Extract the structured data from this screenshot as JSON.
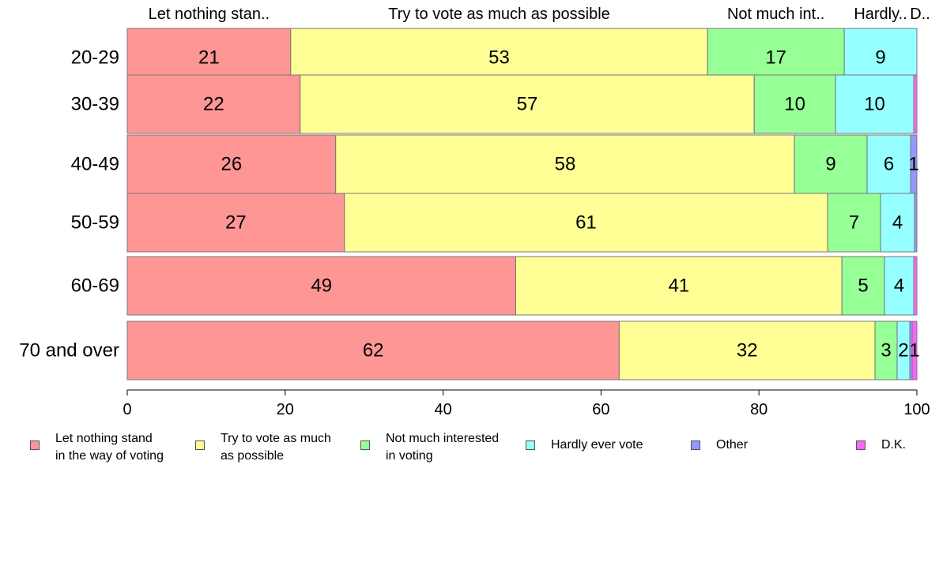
{
  "chart_data": {
    "type": "bar",
    "orientation": "horizontal",
    "stacked": true,
    "categories": [
      "20-29",
      "30-39",
      "40-49",
      "50-59",
      "60-69",
      "70 and over"
    ],
    "series": [
      {
        "name": "Let nothing stand in the way of voting",
        "top_label": "Let nothing stan..",
        "legend_label": "Let nothing stand\nin the way of voting",
        "color": "#ff9696",
        "values": [
          20.7,
          21.9,
          26.4,
          27.5,
          49.2,
          62.3
        ],
        "labels": [
          "21",
          "22",
          "26",
          "27",
          "49",
          "62"
        ]
      },
      {
        "name": "Try to vote as much as possible",
        "top_label": "Try to vote as much as possible",
        "legend_label": "Try to vote as much\nas possible",
        "color": "#ffff96",
        "values": [
          52.8,
          57.5,
          58.1,
          61.2,
          41.3,
          32.4
        ],
        "labels": [
          "53",
          "57",
          "58",
          "61",
          "41",
          "32"
        ]
      },
      {
        "name": "Not much interested in voting",
        "top_label": "Not much int..",
        "legend_label": "Not much interested\nin voting",
        "color": "#96ff96",
        "values": [
          17.3,
          10.3,
          9.2,
          6.7,
          5.4,
          2.8
        ],
        "labels": [
          "17",
          "10",
          "9",
          "7",
          "5",
          "3"
        ]
      },
      {
        "name": "Hardly ever vote",
        "top_label": "Hardly..",
        "legend_label": "Hardly ever vote",
        "color": "#96ffff",
        "values": [
          9.2,
          9.9,
          5.5,
          4.3,
          3.7,
          1.6
        ],
        "labels": [
          "9",
          "10",
          "6",
          "4",
          "4",
          "2"
        ]
      },
      {
        "name": "Other",
        "top_label": "",
        "legend_label": "Other",
        "color": "#9696ff",
        "values": [
          0.0,
          0.0,
          0.8,
          0.3,
          0.0,
          0.3
        ],
        "labels": [
          "",
          "",
          "1",
          "",
          "",
          ""
        ]
      },
      {
        "name": "D.K.",
        "top_label": "D..",
        "legend_label": "D.K.",
        "color": "#ff64ff",
        "values": [
          0.0,
          0.4,
          0.0,
          0.0,
          0.4,
          0.6
        ],
        "labels": [
          "",
          "",
          "",
          "",
          "",
          "1"
        ]
      }
    ],
    "xlim": [
      0,
      100
    ],
    "x_ticks": [
      "0",
      "20",
      "40",
      "60",
      "80",
      "100"
    ],
    "title": "",
    "xlabel": "",
    "ylabel": "",
    "grid": false,
    "legend_position": "bottom"
  }
}
